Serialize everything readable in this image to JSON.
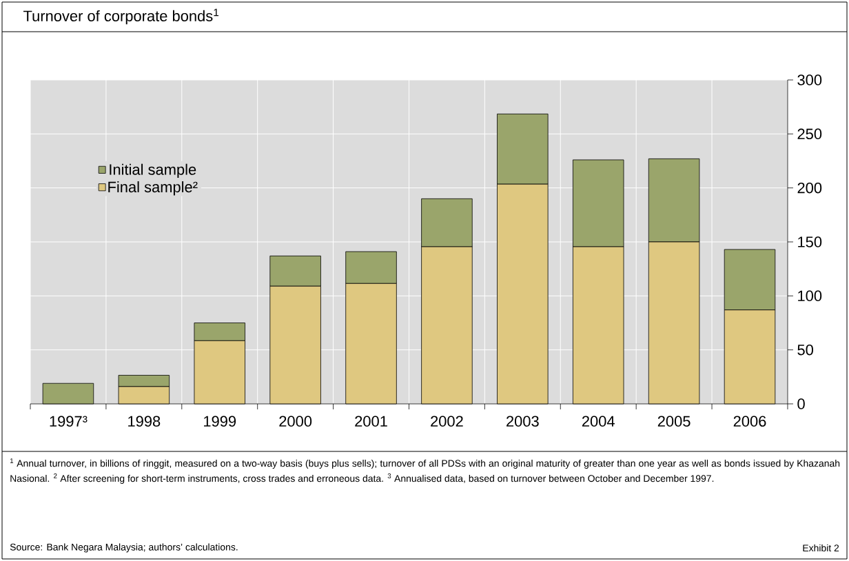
{
  "chart_data": {
    "type": "bar",
    "title": "Turnover of corporate bonds$^{1}$",
    "categories": [
      "1997³",
      "1998",
      "1999",
      "2000",
      "2001",
      "2002",
      "2003",
      "2004",
      "2005",
      "2006"
    ],
    "series": [
      {
        "name": "Final sample²",
        "color": "#dfc880",
        "values": [
          0,
          16,
          58.5,
          109,
          111.5,
          145.5,
          203.5,
          145.5,
          150,
          87
        ]
      },
      {
        "name": "Initial sample",
        "color": "#9aa56b",
        "values": [
          19,
          10.5,
          16.5,
          28,
          29.5,
          44.5,
          65,
          80.5,
          77,
          56
        ]
      }
    ],
    "stacked": true,
    "ylim": [
      0,
      300
    ],
    "yticks": [
      0,
      50,
      100,
      150,
      200,
      250,
      300
    ],
    "grid": true,
    "legend": "top left",
    "annotations": [
      "$^{1}$ Annual turnover, in billions of ringgit, measured on a two-way basis (buys plus sells); turnover of all PDSs with an original maturity of greater than one year as well as bonds issued by Khazanah Nasional. $^{2}$ After screening for short-term instruments, cross trades and erroneous data. $^{3}$ Annualised data, based on turnover between October and December 1997.",
      "Source: Bank Negara Malaysia; authors’ calculations.",
      "Exhibit 2"
    ]
  }
}
